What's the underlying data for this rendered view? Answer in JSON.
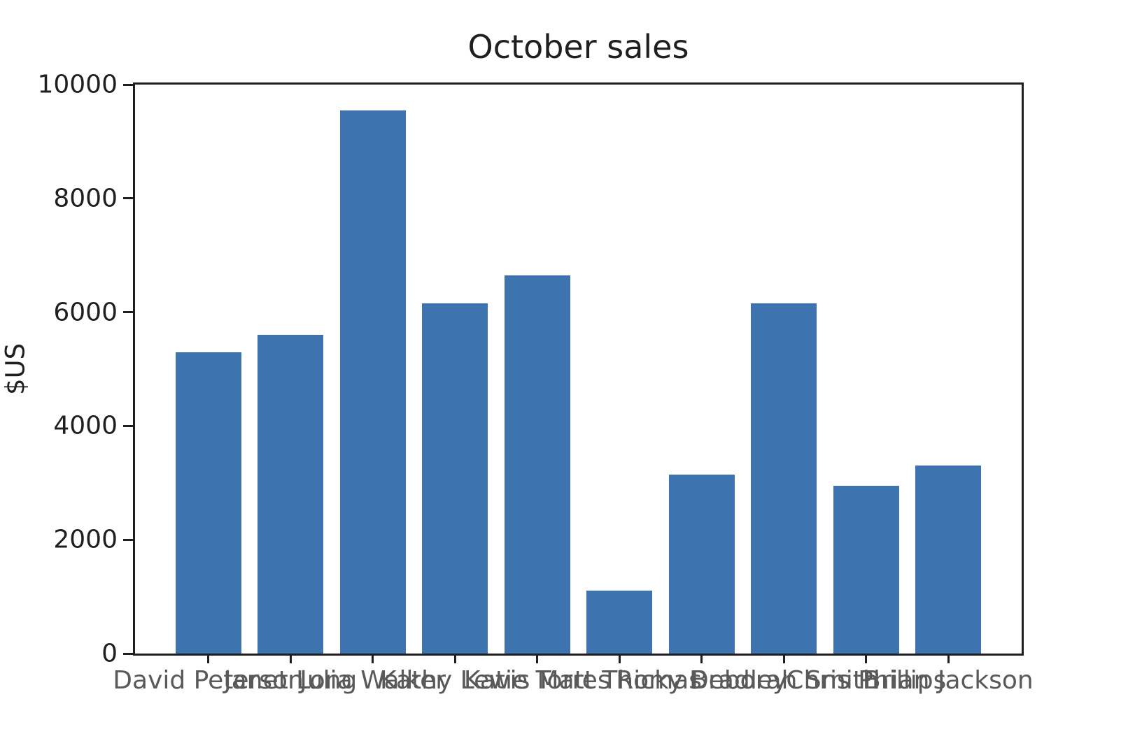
{
  "figure": {
    "title": "October sales",
    "ylabel": "$US"
  },
  "chart_data": {
    "type": "bar",
    "title": "October sales",
    "xlabel": "",
    "ylabel": "$US",
    "categories": [
      "David Peterson",
      "Janet Long",
      "Julia Walker",
      "Kathy Lewis",
      "Katie Torres",
      "Matt Thomas",
      "Ricky Bradley",
      "Deborah Smith",
      "Chris Phillips",
      "Brian Jackson"
    ],
    "values": [
      5300,
      5600,
      9550,
      6150,
      6650,
      1100,
      3150,
      6150,
      2950,
      3300
    ],
    "ylim": [
      0,
      10000
    ],
    "yticks": [
      0,
      2000,
      4000,
      6000,
      8000,
      10000
    ],
    "bar_color": "#3d74b0",
    "grid": false,
    "legend_position": "none",
    "layout_hint": "x tick labels are horizontal and overlap each other illegibly; bar width 0.8 of slot; full box spines"
  }
}
